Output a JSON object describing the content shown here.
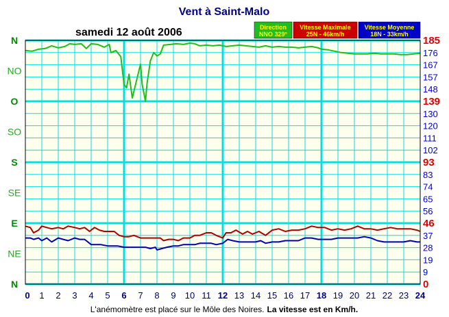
{
  "chart_data": {
    "type": "line",
    "title": "Vent à Saint-Malo",
    "date": "samedi 12 août 2006",
    "footer": {
      "text": "L'anémomètre est placé sur le Môle des Noires.",
      "bold": "La vitesse est en Km/h."
    },
    "x_ticks": [
      "0",
      "1",
      "2",
      "3",
      "4",
      "5",
      "6",
      "7",
      "8",
      "9",
      "10",
      "11",
      "12",
      "13",
      "14",
      "15",
      "16",
      "17",
      "18",
      "19",
      "20",
      "21",
      "22",
      "23",
      "24"
    ],
    "x_major": [
      "6",
      "12",
      "18"
    ],
    "xlim": [
      0,
      24
    ],
    "direction_labels": [
      "N",
      "NO",
      "O",
      "SO",
      "S",
      "SE",
      "E",
      "NE",
      "N"
    ],
    "direction_bold": [
      "N",
      "O",
      "S",
      "E"
    ],
    "speed_ticks": [
      "185",
      "176",
      "167",
      "157",
      "148",
      "139",
      "130",
      "120",
      "111",
      "102",
      "93",
      "83",
      "74",
      "65",
      "56",
      "46",
      "37",
      "28",
      "19",
      "9",
      "0"
    ],
    "speed_red": [
      "185",
      "139",
      "93",
      "46",
      "0"
    ],
    "ylim": [
      0,
      185
    ],
    "legend": [
      {
        "title": "Direction",
        "value": "NNO 329°",
        "color": "#22bb22"
      },
      {
        "title": "Vitesse Maximale",
        "value": "25N - 46km/h",
        "color": "#cc0000"
      },
      {
        "title": "Vitesse Moyenne",
        "value": "18N - 33km/h",
        "color": "#0000cc"
      }
    ],
    "colors": {
      "background": "#ffffee",
      "grid": "#00e0e0",
      "direction": "#22bb22",
      "max": "#aa0000",
      "mean": "#0000aa",
      "title": "#000080",
      "speed_axis": "#0000cc",
      "speed_axis_major": "#dd0000",
      "direction_axis": "#008800",
      "direction_axis_minor": "#22aa22"
    },
    "series": [
      {
        "name": "Direction",
        "units": "degrees",
        "points": [
          [
            0,
            345
          ],
          [
            0.4,
            344
          ],
          [
            0.8,
            347
          ],
          [
            1.2,
            348
          ],
          [
            1.6,
            352
          ],
          [
            2.0,
            349
          ],
          [
            2.4,
            351
          ],
          [
            2.7,
            355
          ],
          [
            3.0,
            354
          ],
          [
            3.4,
            355
          ],
          [
            3.7,
            348
          ],
          [
            4.0,
            355
          ],
          [
            4.4,
            354
          ],
          [
            4.8,
            350
          ],
          [
            5.1,
            354
          ],
          [
            5.2,
            342
          ],
          [
            5.5,
            345
          ],
          [
            5.8,
            336
          ],
          [
            6.0,
            295
          ],
          [
            6.15,
            290
          ],
          [
            6.3,
            310
          ],
          [
            6.5,
            275
          ],
          [
            6.8,
            305
          ],
          [
            7.0,
            325
          ],
          [
            7.1,
            295
          ],
          [
            7.3,
            270
          ],
          [
            7.4,
            297
          ],
          [
            7.6,
            330
          ],
          [
            7.8,
            342
          ],
          [
            8.0,
            337
          ],
          [
            8.2,
            340
          ],
          [
            8.4,
            353
          ],
          [
            8.8,
            354
          ],
          [
            9.2,
            355
          ],
          [
            9.6,
            354
          ],
          [
            10.0,
            356
          ],
          [
            10.3,
            355
          ],
          [
            10.6,
            352
          ],
          [
            11.0,
            353
          ],
          [
            11.4,
            352
          ],
          [
            11.8,
            353
          ],
          [
            12.2,
            351
          ],
          [
            12.6,
            352
          ],
          [
            13.0,
            353
          ],
          [
            13.4,
            352
          ],
          [
            13.8,
            351
          ],
          [
            14.2,
            350
          ],
          [
            14.6,
            352
          ],
          [
            15.0,
            350
          ],
          [
            15.4,
            351
          ],
          [
            15.8,
            350
          ],
          [
            16.2,
            350
          ],
          [
            16.6,
            349
          ],
          [
            17.0,
            350
          ],
          [
            17.4,
            351
          ],
          [
            17.8,
            349
          ],
          [
            18.0,
            347
          ],
          [
            18.4,
            346
          ],
          [
            18.8,
            344
          ],
          [
            19.2,
            342
          ],
          [
            19.6,
            341
          ],
          [
            20.0,
            340
          ],
          [
            20.4,
            340
          ],
          [
            20.8,
            340
          ],
          [
            21.2,
            341
          ],
          [
            21.6,
            340
          ],
          [
            22.0,
            340
          ],
          [
            22.4,
            340
          ],
          [
            22.8,
            339
          ],
          [
            23.2,
            339
          ],
          [
            23.6,
            340
          ],
          [
            24,
            341
          ]
        ]
      },
      {
        "name": "Vitesse Maximale",
        "units": "km/h",
        "points": [
          [
            0,
            44
          ],
          [
            0.3,
            43
          ],
          [
            0.5,
            39
          ],
          [
            0.8,
            41
          ],
          [
            1.0,
            44
          ],
          [
            1.3,
            43
          ],
          [
            1.6,
            42
          ],
          [
            2.0,
            43
          ],
          [
            2.3,
            42
          ],
          [
            2.6,
            44
          ],
          [
            3.0,
            43
          ],
          [
            3.3,
            42
          ],
          [
            3.6,
            43
          ],
          [
            3.9,
            40
          ],
          [
            4.2,
            43
          ],
          [
            4.5,
            41
          ],
          [
            4.8,
            40
          ],
          [
            5.1,
            40
          ],
          [
            5.4,
            40
          ],
          [
            5.7,
            37
          ],
          [
            6.0,
            36
          ],
          [
            6.3,
            36
          ],
          [
            6.6,
            37
          ],
          [
            7.0,
            35
          ],
          [
            7.3,
            35
          ],
          [
            7.6,
            35
          ],
          [
            7.9,
            35
          ],
          [
            8.2,
            35
          ],
          [
            8.4,
            33
          ],
          [
            8.7,
            34
          ],
          [
            9.0,
            34
          ],
          [
            9.3,
            33
          ],
          [
            9.6,
            35
          ],
          [
            10.0,
            35
          ],
          [
            10.3,
            37
          ],
          [
            10.6,
            37
          ],
          [
            11.0,
            39
          ],
          [
            11.3,
            39
          ],
          [
            11.6,
            37
          ],
          [
            12.0,
            35
          ],
          [
            12.2,
            39
          ],
          [
            12.5,
            39
          ],
          [
            12.8,
            41
          ],
          [
            13.2,
            38
          ],
          [
            13.5,
            40
          ],
          [
            13.8,
            38
          ],
          [
            14.2,
            40
          ],
          [
            14.6,
            37
          ],
          [
            15.0,
            41
          ],
          [
            15.4,
            42
          ],
          [
            15.8,
            40
          ],
          [
            16.2,
            41
          ],
          [
            16.6,
            41
          ],
          [
            17.0,
            42
          ],
          [
            17.4,
            44
          ],
          [
            17.8,
            43
          ],
          [
            18.2,
            43
          ],
          [
            18.6,
            41
          ],
          [
            19.0,
            42
          ],
          [
            19.4,
            41
          ],
          [
            19.8,
            42
          ],
          [
            20.2,
            44
          ],
          [
            20.6,
            42
          ],
          [
            21.0,
            42
          ],
          [
            21.4,
            41
          ],
          [
            21.8,
            42
          ],
          [
            22.2,
            43
          ],
          [
            22.6,
            42
          ],
          [
            23.0,
            42
          ],
          [
            23.4,
            42
          ],
          [
            23.8,
            41
          ],
          [
            24,
            40
          ]
        ]
      },
      {
        "name": "Vitesse Moyenne",
        "units": "km/h",
        "points": [
          [
            0,
            35
          ],
          [
            0.3,
            35
          ],
          [
            0.5,
            34
          ],
          [
            0.8,
            35
          ],
          [
            1.0,
            33
          ],
          [
            1.3,
            35
          ],
          [
            1.6,
            32
          ],
          [
            2.0,
            35
          ],
          [
            2.3,
            34
          ],
          [
            2.6,
            33
          ],
          [
            3.0,
            35
          ],
          [
            3.3,
            34
          ],
          [
            3.6,
            34
          ],
          [
            3.8,
            32
          ],
          [
            4.0,
            30
          ],
          [
            4.3,
            30
          ],
          [
            4.6,
            30
          ],
          [
            5.0,
            29
          ],
          [
            5.3,
            29
          ],
          [
            5.6,
            29
          ],
          [
            6.0,
            28
          ],
          [
            6.3,
            28
          ],
          [
            6.6,
            28
          ],
          [
            7.0,
            28
          ],
          [
            7.3,
            28
          ],
          [
            7.6,
            27
          ],
          [
            7.9,
            28
          ],
          [
            8.0,
            26
          ],
          [
            8.3,
            27
          ],
          [
            8.6,
            28
          ],
          [
            9.0,
            29
          ],
          [
            9.3,
            29
          ],
          [
            9.6,
            30
          ],
          [
            10.0,
            30
          ],
          [
            10.3,
            30
          ],
          [
            10.6,
            31
          ],
          [
            11.0,
            31
          ],
          [
            11.3,
            31
          ],
          [
            11.6,
            30
          ],
          [
            12.0,
            31
          ],
          [
            12.3,
            34
          ],
          [
            12.6,
            33
          ],
          [
            13.0,
            32
          ],
          [
            13.3,
            32
          ],
          [
            13.6,
            32
          ],
          [
            14.0,
            32
          ],
          [
            14.3,
            33
          ],
          [
            14.6,
            31
          ],
          [
            15.0,
            32
          ],
          [
            15.4,
            32
          ],
          [
            15.8,
            33
          ],
          [
            16.2,
            33
          ],
          [
            16.6,
            33
          ],
          [
            17.0,
            35
          ],
          [
            17.4,
            35
          ],
          [
            17.8,
            34
          ],
          [
            18.2,
            34
          ],
          [
            18.6,
            34
          ],
          [
            19.0,
            35
          ],
          [
            19.4,
            35
          ],
          [
            19.8,
            35
          ],
          [
            20.2,
            35
          ],
          [
            20.6,
            36
          ],
          [
            21.0,
            35
          ],
          [
            21.4,
            33
          ],
          [
            21.8,
            32
          ],
          [
            22.2,
            32
          ],
          [
            22.6,
            32
          ],
          [
            23.0,
            32
          ],
          [
            23.4,
            33
          ],
          [
            23.8,
            32
          ],
          [
            24,
            32
          ]
        ]
      }
    ]
  }
}
